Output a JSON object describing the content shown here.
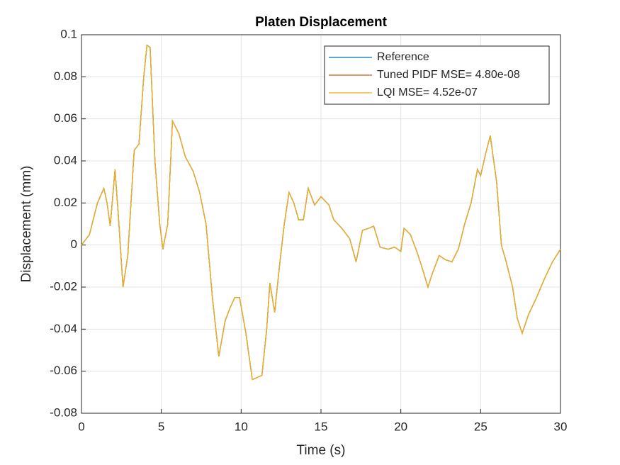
{
  "chart_data": {
    "type": "line",
    "title": "Platen Displacement",
    "xlabel": "Time (s)",
    "ylabel": "Displacement (mm)",
    "x": [
      0,
      0.5,
      1.0,
      1.4,
      1.6,
      1.8,
      2.1,
      2.3,
      2.6,
      2.9,
      3.3,
      3.6,
      3.9,
      4.1,
      4.3,
      4.6,
      4.9,
      5.1,
      5.4,
      5.7,
      6.1,
      6.5,
      7.0,
      7.4,
      7.8,
      8.2,
      8.6,
      9.0,
      9.3,
      9.6,
      9.9,
      10.3,
      10.7,
      11.0,
      11.3,
      11.6,
      11.8,
      12.1,
      12.4,
      12.7,
      13.0,
      13.3,
      13.6,
      13.9,
      14.2,
      14.6,
      15.0,
      15.5,
      15.8,
      16.3,
      16.8,
      17.2,
      17.6,
      18.0,
      18.3,
      18.7,
      19.2,
      19.6,
      20.0,
      20.2,
      20.6,
      21.0,
      21.3,
      21.7,
      22.0,
      22.4,
      22.8,
      23.2,
      23.6,
      24.0,
      24.4,
      24.8,
      25.0,
      25.3,
      25.6,
      26.0,
      26.3,
      26.6,
      27.0,
      27.3,
      27.6,
      28.0,
      28.5,
      29.0,
      29.5,
      30.0
    ],
    "series": [
      {
        "name": "Reference",
        "color": "#0072bd",
        "values": [
          0,
          0.005,
          0.02,
          0.027,
          0.02,
          0.009,
          0.036,
          0.015,
          -0.02,
          -0.005,
          0.045,
          0.048,
          0.08,
          0.095,
          0.094,
          0.04,
          0.01,
          -0.002,
          0.01,
          0.059,
          0.053,
          0.042,
          0.035,
          0.025,
          0.01,
          -0.025,
          -0.053,
          -0.036,
          -0.03,
          -0.025,
          -0.025,
          -0.042,
          -0.064,
          -0.063,
          -0.062,
          -0.04,
          -0.018,
          -0.032,
          -0.01,
          0.01,
          0.025,
          0.02,
          0.012,
          0.012,
          0.027,
          0.019,
          0.023,
          0.019,
          0.012,
          0.008,
          0.003,
          -0.008,
          0.007,
          0.008,
          0.009,
          -0.001,
          -0.002,
          -0.001,
          -0.003,
          0.008,
          0.005,
          -0.003,
          -0.01,
          -0.02,
          -0.013,
          -0.005,
          -0.007,
          -0.008,
          -0.002,
          0.01,
          0.02,
          0.036,
          0.033,
          0.043,
          0.052,
          0.03,
          0.0,
          -0.008,
          -0.02,
          -0.035,
          -0.042,
          -0.033,
          -0.025,
          -0.016,
          -0.008,
          -0.002
        ]
      },
      {
        "name": "Tuned PIDF MSE= 4.80e-08",
        "color": "#d95319",
        "values": [
          0,
          0.005,
          0.02,
          0.027,
          0.02,
          0.009,
          0.036,
          0.015,
          -0.02,
          -0.005,
          0.045,
          0.048,
          0.08,
          0.095,
          0.094,
          0.04,
          0.01,
          -0.002,
          0.01,
          0.059,
          0.053,
          0.042,
          0.035,
          0.025,
          0.01,
          -0.025,
          -0.053,
          -0.036,
          -0.03,
          -0.025,
          -0.025,
          -0.042,
          -0.064,
          -0.063,
          -0.062,
          -0.04,
          -0.018,
          -0.032,
          -0.01,
          0.01,
          0.025,
          0.02,
          0.012,
          0.012,
          0.027,
          0.019,
          0.023,
          0.019,
          0.012,
          0.008,
          0.003,
          -0.008,
          0.007,
          0.008,
          0.009,
          -0.001,
          -0.002,
          -0.001,
          -0.003,
          0.008,
          0.005,
          -0.003,
          -0.01,
          -0.02,
          -0.013,
          -0.005,
          -0.007,
          -0.008,
          -0.002,
          0.01,
          0.02,
          0.036,
          0.033,
          0.043,
          0.052,
          0.03,
          0.0,
          -0.008,
          -0.02,
          -0.035,
          -0.042,
          -0.033,
          -0.025,
          -0.016,
          -0.008,
          -0.002
        ]
      },
      {
        "name": "LQI MSE= 4.52e-07",
        "color": "#edb120",
        "values": [
          0,
          0.005,
          0.02,
          0.027,
          0.02,
          0.009,
          0.036,
          0.015,
          -0.02,
          -0.005,
          0.045,
          0.048,
          0.08,
          0.095,
          0.094,
          0.04,
          0.01,
          -0.002,
          0.01,
          0.059,
          0.053,
          0.042,
          0.035,
          0.025,
          0.01,
          -0.025,
          -0.053,
          -0.036,
          -0.03,
          -0.025,
          -0.025,
          -0.042,
          -0.064,
          -0.063,
          -0.062,
          -0.04,
          -0.018,
          -0.032,
          -0.01,
          0.01,
          0.025,
          0.02,
          0.012,
          0.012,
          0.027,
          0.019,
          0.023,
          0.019,
          0.012,
          0.008,
          0.003,
          -0.008,
          0.007,
          0.008,
          0.009,
          -0.001,
          -0.002,
          -0.001,
          -0.003,
          0.008,
          0.005,
          -0.003,
          -0.01,
          -0.02,
          -0.013,
          -0.005,
          -0.007,
          -0.008,
          -0.002,
          0.01,
          0.02,
          0.036,
          0.033,
          0.043,
          0.052,
          0.03,
          0.0,
          -0.008,
          -0.02,
          -0.035,
          -0.042,
          -0.033,
          -0.025,
          -0.016,
          -0.008,
          -0.002
        ]
      }
    ],
    "xlim": [
      0,
      30
    ],
    "xticks": [
      0,
      5,
      10,
      15,
      20,
      25,
      30
    ],
    "ylim": [
      -0.08,
      0.1
    ],
    "yticks": [
      -0.08,
      -0.06,
      -0.04,
      -0.02,
      0,
      0.02,
      0.04,
      0.06,
      0.08,
      0.1
    ],
    "grid": true,
    "legend": "northeast"
  }
}
